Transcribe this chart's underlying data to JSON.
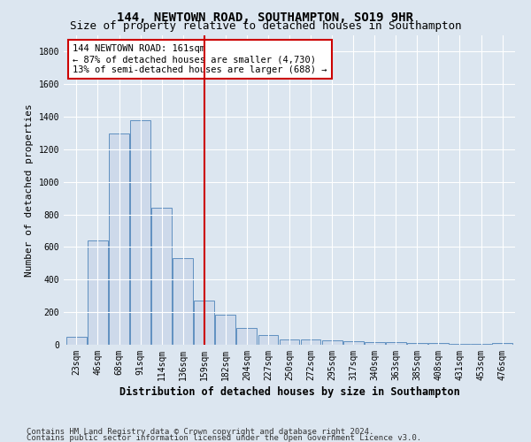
{
  "title": "144, NEWTOWN ROAD, SOUTHAMPTON, SO19 9HR",
  "subtitle": "Size of property relative to detached houses in Southampton",
  "xlabel": "Distribution of detached houses by size in Southampton",
  "ylabel": "Number of detached properties",
  "categories": [
    "23sqm",
    "46sqm",
    "68sqm",
    "91sqm",
    "114sqm",
    "136sqm",
    "159sqm",
    "182sqm",
    "204sqm",
    "227sqm",
    "250sqm",
    "272sqm",
    "295sqm",
    "317sqm",
    "340sqm",
    "363sqm",
    "385sqm",
    "408sqm",
    "431sqm",
    "453sqm",
    "476sqm"
  ],
  "values": [
    50,
    640,
    1300,
    1380,
    840,
    530,
    270,
    185,
    105,
    62,
    35,
    30,
    28,
    20,
    18,
    15,
    10,
    10,
    5,
    5,
    10
  ],
  "bar_color": "#cdd9ea",
  "bar_edge_color": "#6090c0",
  "vline_x_index": 6,
  "vline_color": "#cc0000",
  "annotation_line1": "144 NEWTOWN ROAD: 161sqm",
  "annotation_line2": "← 87% of detached houses are smaller (4,730)",
  "annotation_line3": "13% of semi-detached houses are larger (688) →",
  "annotation_box_color": "#ffffff",
  "annotation_box_edge": "#cc0000",
  "ylim": [
    0,
    1900
  ],
  "yticks": [
    0,
    200,
    400,
    600,
    800,
    1000,
    1200,
    1400,
    1600,
    1800
  ],
  "footer1": "Contains HM Land Registry data © Crown copyright and database right 2024.",
  "footer2": "Contains public sector information licensed under the Open Government Licence v3.0.",
  "bg_color": "#dce6f0",
  "plot_bg_color": "#dce6f0",
  "title_fontsize": 10,
  "subtitle_fontsize": 9,
  "ylabel_fontsize": 8,
  "xlabel_fontsize": 8.5,
  "tick_fontsize": 7,
  "annotation_fontsize": 7.5,
  "footer_fontsize": 6.5
}
